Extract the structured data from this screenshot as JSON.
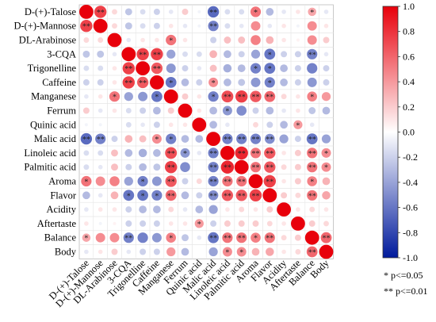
{
  "chart_data": {
    "type": "heatmap",
    "variables": [
      "D-(+)-Talose",
      "D-(+)-Mannose",
      "DL-Arabinose",
      "3-CQA",
      "Trigonelline",
      "Caffeine",
      "Manganese",
      "Ferrum",
      "Quinic acid",
      "Malic acid",
      "Linoleic acid",
      "Palmitic acid",
      "Aroma",
      "Flavor",
      "Acidity",
      "Aftertaste",
      "Balance",
      "Body"
    ],
    "matrix": [
      [
        1,
        0.75,
        0.15,
        -0.25,
        -0.15,
        -0.2,
        -0.1,
        0.2,
        -0.05,
        -0.65,
        -0.15,
        -0.15,
        0.55,
        -0.3,
        -0.1,
        0.1,
        0.35,
        -0.1
      ],
      [
        0.75,
        1,
        0.15,
        -0.25,
        -0.15,
        -0.2,
        0.1,
        -0.1,
        -0.05,
        -0.55,
        -0.15,
        -0.1,
        0.45,
        -0.1,
        0.1,
        -0.05,
        0.45,
        0.1
      ],
      [
        0.15,
        0.15,
        1,
        -0.1,
        0.1,
        0.1,
        0.55,
        0.1,
        0,
        -0.2,
        0.25,
        0.25,
        0.5,
        0.3,
        0.1,
        0.05,
        0.45,
        0.2
      ],
      [
        -0.25,
        -0.25,
        -0.1,
        1,
        0.75,
        0.75,
        -0.4,
        -0.15,
        -0.15,
        0.3,
        -0.3,
        -0.2,
        -0.4,
        -0.6,
        -0.2,
        -0.2,
        -0.55,
        -0.1
      ],
      [
        -0.15,
        -0.15,
        0.1,
        0.75,
        1,
        0.65,
        -0.45,
        -0.2,
        -0.1,
        0.25,
        -0.35,
        -0.3,
        -0.55,
        -0.6,
        -0.3,
        -0.2,
        -0.55,
        -0.2
      ],
      [
        -0.2,
        -0.2,
        0.1,
        0.75,
        0.65,
        1,
        -0.6,
        -0.3,
        -0.2,
        0.45,
        -0.3,
        -0.25,
        -0.45,
        -0.55,
        -0.3,
        -0.2,
        -0.45,
        -0.2
      ],
      [
        -0.1,
        0.1,
        0.55,
        -0.4,
        -0.45,
        -0.6,
        1,
        0.2,
        0.1,
        -0.55,
        0.7,
        0.75,
        0.65,
        0.6,
        0.15,
        0.1,
        0.5,
        0.4
      ],
      [
        0.2,
        -0.1,
        0.1,
        -0.15,
        -0.2,
        -0.3,
        0.2,
        1,
        0.1,
        -0.3,
        -0.45,
        -0.5,
        -0.2,
        -0.3,
        -0.1,
        0.1,
        -0.25,
        -0.3
      ],
      [
        -0.05,
        -0.05,
        0,
        -0.15,
        -0.1,
        -0.2,
        0.1,
        0.1,
        1,
        -0.3,
        -0.1,
        0,
        0.15,
        -0.2,
        -0.3,
        0.4,
        -0.1,
        0
      ],
      [
        -0.65,
        -0.55,
        -0.2,
        0.3,
        0.25,
        0.45,
        -0.55,
        -0.3,
        -0.3,
        1,
        -0.55,
        -0.55,
        -0.55,
        -0.5,
        -0.4,
        -0.2,
        -0.6,
        -0.4
      ],
      [
        -0.15,
        -0.15,
        0.25,
        -0.3,
        -0.35,
        -0.3,
        0.7,
        -0.45,
        -0.1,
        -0.55,
        1,
        0.85,
        0.55,
        0.65,
        0.1,
        0.2,
        0.55,
        0.45
      ],
      [
        -0.15,
        -0.1,
        0.25,
        -0.2,
        -0.3,
        -0.25,
        0.75,
        -0.5,
        0,
        -0.55,
        0.85,
        1,
        0.55,
        0.65,
        0.15,
        0.2,
        0.55,
        0.45
      ],
      [
        0.55,
        0.45,
        0.5,
        -0.4,
        -0.55,
        -0.45,
        0.65,
        -0.2,
        0.15,
        -0.55,
        0.55,
        0.55,
        1,
        0.75,
        0.1,
        0.2,
        0.5,
        0.3
      ],
      [
        -0.3,
        -0.1,
        0.3,
        -0.6,
        -0.6,
        -0.55,
        0.6,
        -0.3,
        -0.2,
        -0.5,
        0.65,
        0.65,
        0.75,
        1,
        0.2,
        0.15,
        0.55,
        0.35
      ],
      [
        -0.1,
        0.1,
        0.1,
        -0.2,
        -0.3,
        -0.3,
        0.15,
        -0.1,
        -0.3,
        -0.4,
        0.1,
        0.15,
        0.1,
        0.2,
        1,
        0.1,
        0.15,
        0.1
      ],
      [
        0.1,
        -0.05,
        0.05,
        -0.2,
        -0.2,
        -0.2,
        0.1,
        0.1,
        0.4,
        -0.2,
        0.2,
        0.2,
        0.2,
        0.15,
        0.1,
        1,
        0.2,
        0.15
      ],
      [
        0.35,
        0.45,
        0.45,
        -0.55,
        -0.55,
        -0.45,
        0.5,
        -0.25,
        -0.1,
        -0.6,
        0.55,
        0.55,
        0.5,
        0.55,
        0.15,
        0.2,
        1,
        0.6
      ],
      [
        -0.1,
        0.1,
        0.2,
        -0.1,
        -0.2,
        -0.2,
        0.4,
        -0.3,
        0,
        -0.4,
        0.45,
        0.45,
        0.3,
        0.35,
        0.1,
        0.15,
        0.6,
        1
      ]
    ],
    "significance": [
      [
        "",
        "**",
        "",
        "",
        "",
        "",
        "",
        "",
        "",
        "**",
        "",
        "",
        "*",
        "",
        "",
        "",
        "*",
        ""
      ],
      [
        "**",
        "",
        "",
        "",
        "",
        "",
        "",
        "",
        "",
        "**",
        "",
        "",
        "",
        "",
        "",
        "",
        "",
        ""
      ],
      [
        "",
        "",
        "",
        "",
        "",
        "",
        "*",
        "",
        "",
        "",
        "",
        "",
        "",
        "",
        "",
        "",
        "",
        ""
      ],
      [
        "",
        "",
        "",
        "",
        "**",
        "**",
        "",
        "",
        "",
        "",
        "",
        "",
        "",
        "*",
        "",
        "",
        "**",
        ""
      ],
      [
        "",
        "",
        "",
        "**",
        "",
        "**",
        "",
        "",
        "",
        "",
        "",
        "",
        "*",
        "*",
        "",
        "",
        "",
        ""
      ],
      [
        "",
        "",
        "",
        "**",
        "**",
        "",
        "*",
        "",
        "",
        "*",
        "",
        "",
        "",
        "*",
        "",
        "",
        "",
        ""
      ],
      [
        "",
        "",
        "*",
        "",
        "",
        "*",
        "",
        "",
        "",
        "*",
        "**",
        "**",
        "**",
        "**",
        "",
        "",
        "*",
        ""
      ],
      [
        "",
        "",
        "",
        "",
        "",
        "",
        "",
        "",
        "",
        "",
        "*",
        "",
        "",
        "",
        "",
        "",
        "",
        ""
      ],
      [
        "",
        "",
        "",
        "",
        "",
        "",
        "",
        "",
        "",
        "",
        "",
        "",
        "",
        "",
        "",
        "*",
        "",
        ""
      ],
      [
        "**",
        "**",
        "",
        "",
        "",
        "*",
        "*",
        "",
        "",
        "",
        "**",
        "**",
        "**",
        "**",
        "",
        "",
        "**",
        ""
      ],
      [
        "",
        "",
        "",
        "",
        "",
        "",
        "**",
        "*",
        "",
        "**",
        "",
        "**",
        "**",
        "**",
        "",
        "",
        "**",
        "*"
      ],
      [
        "",
        "",
        "",
        "",
        "",
        "",
        "**",
        "",
        "",
        "**",
        "**",
        "",
        "**",
        "**",
        "",
        "",
        "**",
        "*"
      ],
      [
        "*",
        "",
        "",
        "",
        "*",
        "",
        "**",
        "",
        "",
        "**",
        "**",
        "**",
        "",
        "**",
        "",
        "",
        "*",
        ""
      ],
      [
        "",
        "",
        "",
        "*",
        "*",
        "*",
        "**",
        "",
        "",
        "**",
        "**",
        "**",
        "**",
        "",
        "",
        "",
        "**",
        ""
      ],
      [
        "",
        "",
        "",
        "",
        "",
        "",
        "",
        "",
        "",
        "",
        "",
        "",
        "",
        "",
        "",
        "",
        "",
        ""
      ],
      [
        "",
        "",
        "",
        "",
        "",
        "",
        "",
        "",
        "*",
        "",
        "",
        "",
        "",
        "",
        "",
        "",
        "",
        ""
      ],
      [
        "*",
        "",
        "",
        "**",
        "",
        "",
        "*",
        "",
        "",
        "**",
        "**",
        "**",
        "*",
        "**",
        "",
        "",
        "",
        "**"
      ],
      [
        "",
        "",
        "",
        "",
        "",
        "",
        "",
        "",
        "",
        "",
        "*",
        "*",
        "",
        "",
        "",
        "",
        "**",
        ""
      ]
    ],
    "colorbar": {
      "min": -1.0,
      "max": 1.0,
      "ticks": [
        "1.0",
        "0.8",
        "0.6",
        "0.4",
        "0.2",
        "0.0",
        "-0.2",
        "-0.4",
        "-0.6",
        "-0.8",
        "-1.0"
      ]
    },
    "colors": {
      "positive": "#e8000b",
      "negative": "#001a9c",
      "neutral": "#ffffff",
      "grid": "#e6e6e6"
    }
  },
  "legend_notes": [
    "*  p<=0.05",
    "** p<=0.01"
  ]
}
